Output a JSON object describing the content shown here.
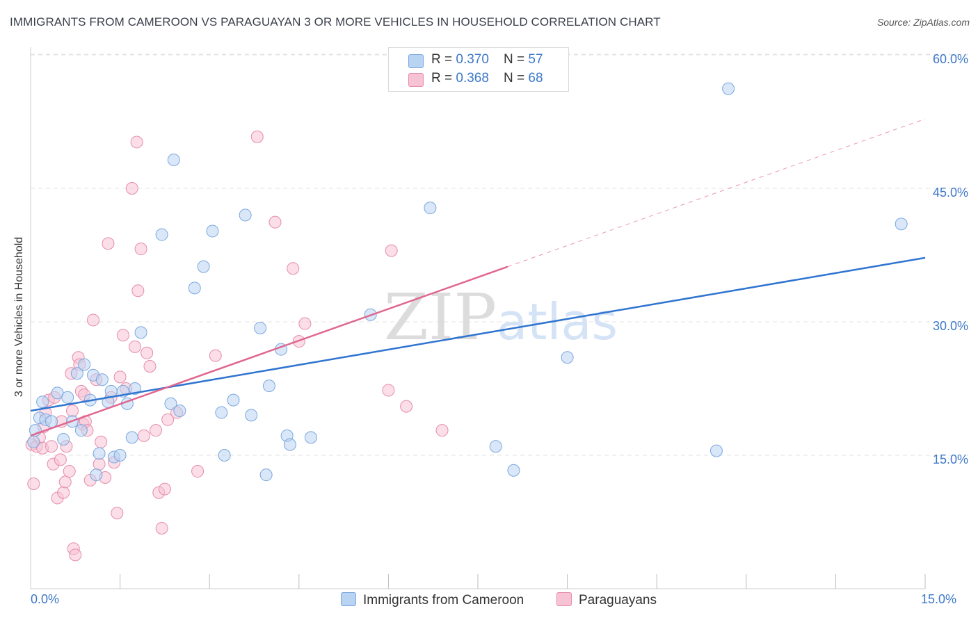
{
  "header": {
    "title": "IMMIGRANTS FROM CAMEROON VS PARAGUAYAN 3 OR MORE VEHICLES IN HOUSEHOLD CORRELATION CHART",
    "source": "Source: ZipAtlas.com"
  },
  "legend": {
    "rows": [
      {
        "r_label": "R = ",
        "r_value": "0.370",
        "n_label": "N = ",
        "n_value": "57"
      },
      {
        "r_label": "R = ",
        "r_value": "0.368",
        "n_label": "N = ",
        "n_value": "68"
      }
    ]
  },
  "bottom_legend": [
    "Immigrants from Cameroon",
    "Paraguayans"
  ],
  "colors": {
    "cameroon_fill": "#b9d3f3",
    "cameroon_stroke": "#7aa7de",
    "cameroon_line": "#2f74d0",
    "paraguay_fill": "#f7c3d4",
    "paraguay_stroke": "#e58cab",
    "paraguay_line": "#e0678f",
    "tick_text": "#3d78c8",
    "grid": "#e3e3e3"
  },
  "chart_data": {
    "type": "scatter",
    "title": "IMMIGRANTS FROM CAMEROON VS PARAGUAYAN 3 OR MORE VEHICLES IN HOUSEHOLD CORRELATION CHART",
    "xlabel": "",
    "ylabel": "3 or more Vehicles in Household",
    "xlim": [
      0,
      15
    ],
    "ylim": [
      0,
      60
    ],
    "x_tick_labels": [
      "0.0%",
      "15.0%"
    ],
    "y_ticks": [
      15,
      30,
      45,
      60
    ],
    "y_tick_labels": [
      "15.0%",
      "30.0%",
      "45.0%",
      "60.0%"
    ],
    "grid": true,
    "legend_position": "top-center",
    "watermark": "ZIPatlas",
    "series": [
      {
        "name": "Immigrants from Cameroon",
        "r": 0.37,
        "n": 57,
        "trend": {
          "x": [
            0,
            15
          ],
          "y": [
            20.0,
            37.2
          ]
        },
        "points": [
          [
            0.05,
            16.5
          ],
          [
            0.08,
            17.8
          ],
          [
            0.15,
            19.2
          ],
          [
            0.2,
            21.0
          ],
          [
            0.25,
            19.0
          ],
          [
            0.35,
            18.8
          ],
          [
            0.45,
            22.0
          ],
          [
            0.55,
            16.8
          ],
          [
            0.62,
            21.5
          ],
          [
            0.7,
            18.8
          ],
          [
            0.78,
            24.2
          ],
          [
            0.85,
            17.8
          ],
          [
            0.9,
            25.2
          ],
          [
            1.0,
            21.2
          ],
          [
            1.05,
            24.0
          ],
          [
            1.1,
            12.8
          ],
          [
            1.15,
            15.2
          ],
          [
            1.2,
            23.5
          ],
          [
            1.3,
            21.0
          ],
          [
            1.35,
            22.2
          ],
          [
            1.4,
            14.8
          ],
          [
            1.5,
            15.0
          ],
          [
            1.55,
            22.2
          ],
          [
            1.62,
            20.8
          ],
          [
            1.7,
            17.0
          ],
          [
            1.75,
            22.5
          ],
          [
            1.85,
            28.8
          ],
          [
            2.2,
            39.8
          ],
          [
            2.35,
            20.8
          ],
          [
            2.4,
            48.2
          ],
          [
            2.5,
            20.0
          ],
          [
            2.75,
            33.8
          ],
          [
            2.9,
            36.2
          ],
          [
            3.05,
            40.2
          ],
          [
            3.2,
            19.8
          ],
          [
            3.25,
            15.0
          ],
          [
            3.4,
            21.2
          ],
          [
            3.6,
            42.0
          ],
          [
            3.7,
            19.5
          ],
          [
            3.85,
            29.3
          ],
          [
            3.95,
            12.8
          ],
          [
            4.0,
            22.8
          ],
          [
            4.2,
            26.9
          ],
          [
            4.3,
            17.2
          ],
          [
            4.35,
            16.2
          ],
          [
            4.7,
            17.0
          ],
          [
            5.7,
            30.8
          ],
          [
            6.7,
            42.8
          ],
          [
            7.8,
            16.0
          ],
          [
            8.1,
            13.3
          ],
          [
            9.0,
            26.0
          ],
          [
            11.5,
            15.5
          ],
          [
            11.7,
            56.2
          ],
          [
            14.6,
            41.0
          ]
        ]
      },
      {
        "name": "Paraguayans",
        "r": 0.368,
        "n": 68,
        "trend": {
          "x": [
            0,
            8.0
          ],
          "y": [
            17.2,
            36.2
          ]
        },
        "trend_extension": {
          "x": [
            8.0,
            15
          ],
          "y": [
            36.2,
            52.8
          ]
        },
        "points": [
          [
            0.02,
            16.2
          ],
          [
            0.05,
            11.8
          ],
          [
            0.1,
            16.0
          ],
          [
            0.15,
            17.0
          ],
          [
            0.2,
            15.8
          ],
          [
            0.22,
            18.2
          ],
          [
            0.25,
            19.8
          ],
          [
            0.3,
            21.2
          ],
          [
            0.35,
            16.0
          ],
          [
            0.38,
            14.0
          ],
          [
            0.4,
            21.5
          ],
          [
            0.45,
            10.2
          ],
          [
            0.5,
            14.5
          ],
          [
            0.52,
            18.8
          ],
          [
            0.55,
            10.8
          ],
          [
            0.58,
            12.0
          ],
          [
            0.6,
            16.0
          ],
          [
            0.65,
            13.2
          ],
          [
            0.68,
            24.2
          ],
          [
            0.7,
            20.0
          ],
          [
            0.72,
            4.5
          ],
          [
            0.75,
            3.8
          ],
          [
            0.8,
            26.0
          ],
          [
            0.82,
            25.2
          ],
          [
            0.85,
            22.2
          ],
          [
            0.88,
            18.5
          ],
          [
            0.9,
            21.8
          ],
          [
            0.92,
            18.8
          ],
          [
            0.95,
            17.8
          ],
          [
            1.0,
            12.2
          ],
          [
            1.05,
            30.2
          ],
          [
            1.1,
            23.5
          ],
          [
            1.15,
            14.0
          ],
          [
            1.18,
            16.5
          ],
          [
            1.25,
            12.5
          ],
          [
            1.3,
            38.8
          ],
          [
            1.35,
            21.5
          ],
          [
            1.4,
            14.2
          ],
          [
            1.45,
            8.5
          ],
          [
            1.5,
            23.8
          ],
          [
            1.55,
            28.5
          ],
          [
            1.6,
            22.5
          ],
          [
            1.7,
            45.0
          ],
          [
            1.75,
            27.2
          ],
          [
            1.78,
            50.2
          ],
          [
            1.8,
            33.5
          ],
          [
            1.85,
            38.2
          ],
          [
            1.9,
            17.2
          ],
          [
            1.95,
            26.5
          ],
          [
            2.0,
            25.0
          ],
          [
            2.1,
            17.8
          ],
          [
            2.15,
            10.8
          ],
          [
            2.2,
            6.8
          ],
          [
            2.25,
            11.2
          ],
          [
            2.3,
            19.0
          ],
          [
            2.45,
            19.8
          ],
          [
            2.8,
            13.2
          ],
          [
            3.1,
            26.2
          ],
          [
            3.8,
            50.8
          ],
          [
            4.1,
            41.2
          ],
          [
            4.4,
            36.0
          ],
          [
            4.5,
            27.8
          ],
          [
            4.6,
            29.8
          ],
          [
            6.0,
            22.3
          ],
          [
            6.05,
            38.0
          ],
          [
            6.3,
            20.5
          ],
          [
            6.9,
            17.8
          ]
        ]
      }
    ]
  }
}
